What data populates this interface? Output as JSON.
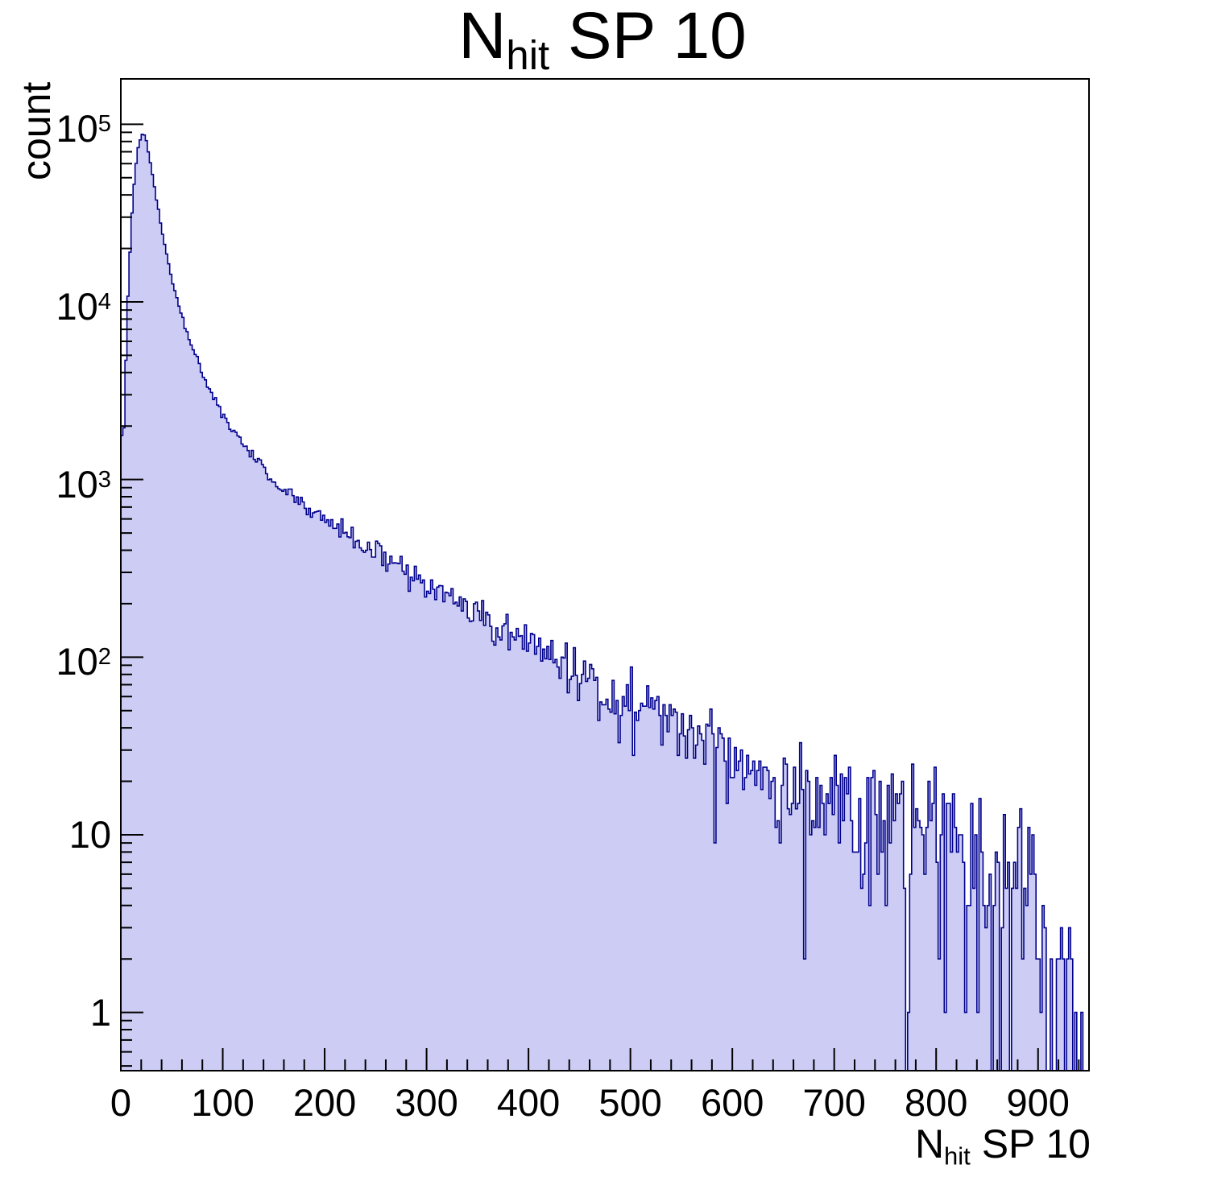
{
  "page": {
    "background": "#ffffff"
  },
  "title": {
    "main": "N",
    "sub": "hit",
    "rest": " SP 10"
  },
  "axes": {
    "y_title": "count"
  },
  "chart_data": {
    "type": "histogram",
    "title": "N_hit SP 10",
    "xlabel": "N_hit SP 10",
    "ylabel": "count",
    "y_scale": "log",
    "grid": false,
    "legend": "none",
    "x_range": [
      0,
      950
    ],
    "y_range": [
      0.47,
      180000
    ],
    "bin_width": 2,
    "noise_seed": 42,
    "noise_scale": 1.6,
    "x_ticks": [
      0,
      100,
      200,
      300,
      400,
      500,
      600,
      700,
      800,
      900
    ],
    "y_ticks": [
      "1",
      "10",
      "10^2",
      "10^3",
      "10^4",
      "10^5"
    ],
    "colors": {
      "fill": "#ccccf4",
      "line": "#00008c",
      "axis": "#000000"
    },
    "profile": {
      "x": [
        0,
        2,
        4,
        6,
        8,
        12,
        16,
        20,
        24,
        28,
        32,
        36,
        40,
        45,
        50,
        55,
        60,
        65,
        70,
        75,
        80,
        85,
        90,
        95,
        100,
        110,
        120,
        130,
        140,
        150,
        160,
        170,
        180,
        190,
        200,
        210,
        220,
        230,
        240,
        250,
        260,
        270,
        280,
        290,
        300,
        310,
        320,
        330,
        340,
        350,
        360,
        370,
        380,
        390,
        400,
        410,
        420,
        430,
        440,
        450,
        460,
        470,
        480,
        490,
        500,
        510,
        520,
        530,
        540,
        550,
        560,
        570,
        580,
        590,
        600,
        610,
        620,
        630,
        640,
        650,
        660,
        670,
        680,
        690,
        700,
        710,
        720,
        730,
        740,
        750,
        760,
        770,
        780,
        790,
        800,
        810,
        820,
        830,
        840,
        850,
        860,
        870,
        880,
        890,
        900,
        905,
        910,
        915,
        920,
        925,
        930,
        935,
        940,
        945
      ],
      "y": [
        2600,
        1300,
        3000,
        8000,
        15000,
        40000,
        70000,
        88000,
        86000,
        65000,
        48000,
        35000,
        26000,
        18500,
        13500,
        10500,
        8200,
        6700,
        5500,
        4700,
        4000,
        3450,
        3000,
        2650,
        2350,
        1900,
        1580,
        1330,
        1140,
        990,
        880,
        790,
        715,
        650,
        595,
        545,
        500,
        460,
        425,
        390,
        358,
        330,
        303,
        278,
        255,
        235,
        216,
        199,
        184,
        170,
        158,
        147,
        137,
        128,
        119,
        110,
        102,
        95,
        88,
        82,
        76,
        71,
        66,
        61,
        57,
        53,
        50,
        47,
        44,
        41,
        38,
        36,
        33,
        31,
        29,
        27,
        26,
        24,
        23,
        21,
        20,
        19,
        18,
        17,
        16,
        15,
        14,
        13,
        12.5,
        12,
        11.5,
        11,
        10.5,
        10,
        9.5,
        9,
        8.5,
        8,
        7.5,
        7,
        6.5,
        6,
        5.5,
        5,
        4,
        3,
        2.2,
        1.6,
        1.2,
        1.0,
        0.8,
        0.7,
        0.6,
        0.5
      ]
    }
  }
}
